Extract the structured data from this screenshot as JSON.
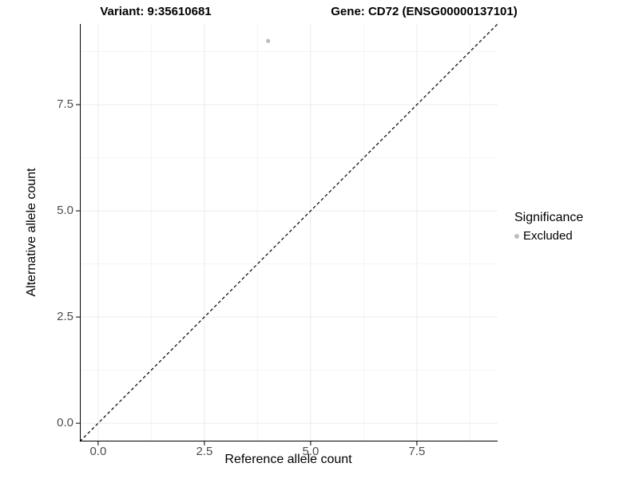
{
  "chart_data": {
    "type": "scatter",
    "title_left": "Variant: 9:35610681",
    "title_right": "Gene: CD72 (ENSG00000137101)",
    "xlabel": "Reference allele count",
    "ylabel": "Alternative allele count",
    "xlim": [
      -0.43,
      9.4
    ],
    "ylim": [
      -0.43,
      9.4
    ],
    "major_ticks": [
      0,
      2.5,
      5,
      7.5
    ],
    "minor_ticks": [
      1.25,
      3.75,
      6.25,
      8.75
    ],
    "tick_labels": [
      "0.0",
      "2.5",
      "5.0",
      "7.5"
    ],
    "points": [
      {
        "x": 4,
        "y": 9,
        "series": "Excluded"
      }
    ],
    "point_color": "#bdbdbd",
    "point_radius": 2.6,
    "reference_line": {
      "type": "identity",
      "style": "dashed",
      "color": "#000000",
      "dash": "4 3"
    },
    "grid": "on",
    "grid_major_color": "#ebebeb",
    "grid_minor_color": "#f4f4f4",
    "axis_line_color": "#000000",
    "legend": {
      "title": "Significance",
      "position": "right",
      "items": [
        {
          "label": "Excluded",
          "color": "#bdbdbd"
        }
      ]
    }
  }
}
